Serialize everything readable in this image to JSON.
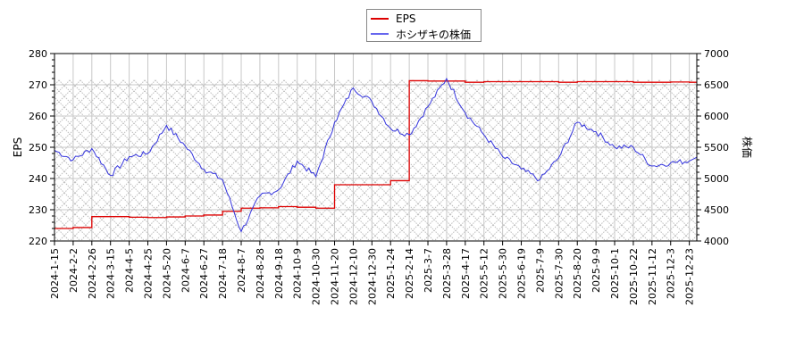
{
  "legend": {
    "items": [
      {
        "label": "EPS",
        "color": "#dd0000"
      },
      {
        "label": "ホシザキの株価",
        "color": "#3333dd"
      }
    ]
  },
  "axes": {
    "left_title": "EPS",
    "right_title": "株価",
    "left_ticks": [
      "220",
      "230",
      "240",
      "250",
      "260",
      "270",
      "280"
    ],
    "right_ticks": [
      "4000",
      "4500",
      "5000",
      "5500",
      "6000",
      "6500",
      "7000"
    ],
    "x_ticks": [
      "2024-1-15",
      "2024-2-2",
      "2024-2-26",
      "2024-3-15",
      "2024-4-5",
      "2024-4-25",
      "2024-5-20",
      "2024-6-7",
      "2024-6-27",
      "2024-7-18",
      "2024-8-7",
      "2024-8-28",
      "2024-9-18",
      "2024-10-9",
      "2024-10-30",
      "2024-11-20",
      "2024-12-10",
      "2024-12-30",
      "2025-1-24",
      "2025-2-14",
      "2025-3-7",
      "2025-3-28",
      "2025-4-17",
      "2025-5-12",
      "2025-5-30",
      "2025-6-19",
      "2025-7-9",
      "2025-7-30",
      "2025-8-20",
      "2025-9-9",
      "2025-10-1",
      "2025-10-22",
      "2025-11-12",
      "2025-12-3",
      "2025-12-23"
    ]
  },
  "chart_data": {
    "type": "line",
    "title": "",
    "xlabel": "",
    "ylabel": "EPS",
    "y2label": "株価",
    "ylim": [
      220,
      280
    ],
    "y2lim": [
      4000,
      7000
    ],
    "grid": true,
    "legend_position": "top-center",
    "categories": [
      "2024-1-15",
      "2024-2-2",
      "2024-2-26",
      "2024-3-15",
      "2024-4-5",
      "2024-4-25",
      "2024-5-20",
      "2024-6-7",
      "2024-6-27",
      "2024-7-18",
      "2024-8-7",
      "2024-8-28",
      "2024-9-18",
      "2024-10-9",
      "2024-10-30",
      "2024-11-20",
      "2024-12-10",
      "2024-12-30",
      "2025-1-24",
      "2025-2-14",
      "2025-3-7",
      "2025-3-28",
      "2025-4-17",
      "2025-5-12",
      "2025-5-30",
      "2025-6-19",
      "2025-7-9",
      "2025-7-30",
      "2025-8-20",
      "2025-9-9",
      "2025-10-1",
      "2025-10-22",
      "2025-11-12",
      "2025-12-3",
      "2025-12-23"
    ],
    "series": [
      {
        "name": "EPS",
        "axis": "left",
        "color": "#dd0000",
        "values": [
          224.0,
          224.3,
          227.8,
          227.8,
          227.6,
          227.5,
          227.7,
          228.0,
          228.3,
          229.5,
          230.5,
          230.6,
          231.0,
          230.8,
          230.5,
          238.0,
          238.0,
          238.0,
          239.3,
          271.3,
          271.2,
          271.2,
          270.8,
          271.0,
          271.0,
          271.0,
          271.0,
          270.8,
          271.0,
          271.0,
          271.0,
          270.8,
          270.8,
          270.9,
          270.8
        ]
      },
      {
        "name": "ホシザキの株価",
        "axis": "right",
        "color": "#3333dd",
        "values": [
          5450,
          5300,
          5480,
          5050,
          5350,
          5400,
          5850,
          5520,
          5150,
          4980,
          4150,
          4720,
          4820,
          5280,
          5030,
          5900,
          6450,
          6230,
          5800,
          5700,
          6150,
          6600,
          6050,
          5700,
          5350,
          5150,
          4980,
          5330,
          5900,
          5750,
          5500,
          5500,
          5200,
          5250,
          5280
        ]
      }
    ]
  }
}
